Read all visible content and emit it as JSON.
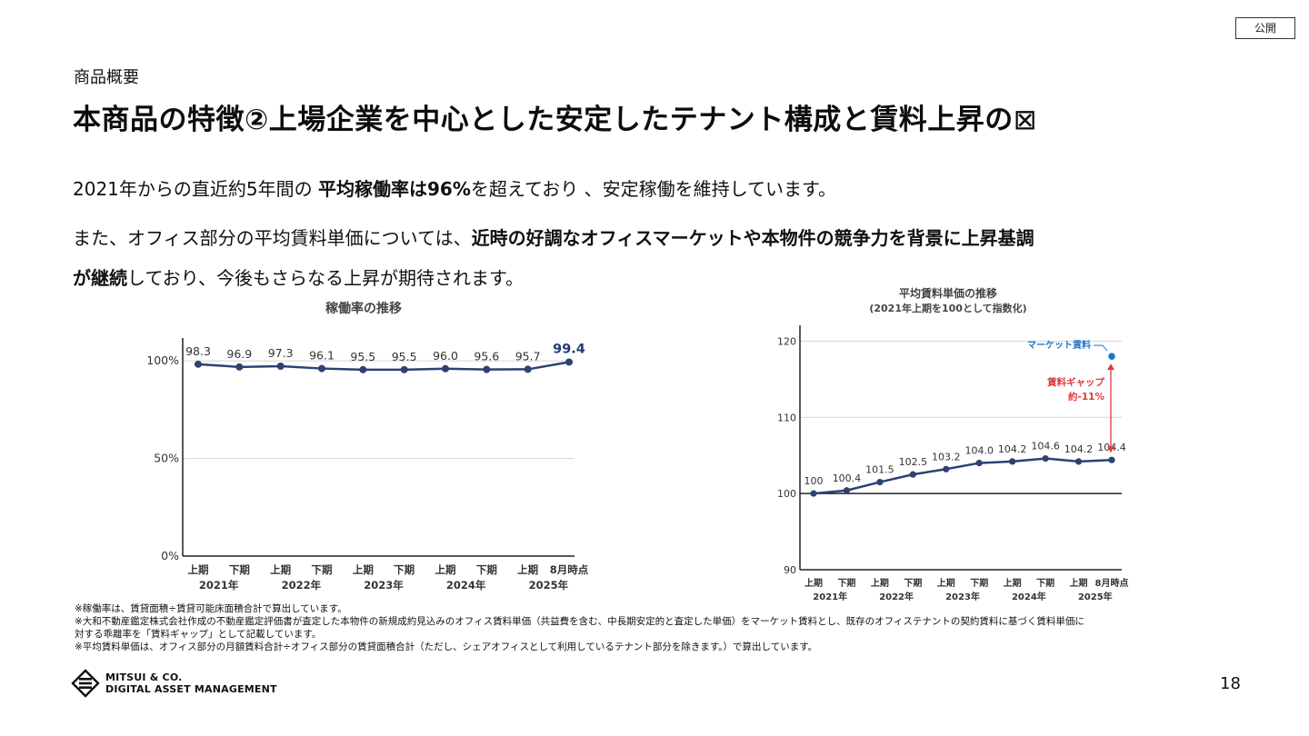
{
  "badge": "公開",
  "section_label": "商品概要",
  "title": "本商品の特徴②上場企業を中心とした安定したテナント構成と賃料上昇の",
  "title_glyph": "⊠",
  "paragraph1": {
    "part1": "2021年からの直近約5年間の ",
    "bold": "平均稼働率は96%",
    "part2": "を超えており 、安定稼働を維持しています。"
  },
  "paragraph2": {
    "part1": "また、オフィス部分の平均賃料単価については、",
    "bold1": "近時の好調なオフィスマーケットや本物件の競争力を背景に上昇基調",
    "bold2": "が継続",
    "part2": "しており、今後もさらなる上昇が期待されます。"
  },
  "chart_data": [
    {
      "type": "line",
      "title": "稼働率の推移",
      "categories": [
        "上期",
        "下期",
        "上期",
        "下期",
        "上期",
        "下期",
        "上期",
        "下期",
        "上期",
        "8月時点"
      ],
      "year_groups": [
        "2021年",
        "2022年",
        "2023年",
        "2024年",
        "2025年"
      ],
      "values": [
        98.3,
        96.9,
        97.3,
        96.1,
        95.5,
        95.5,
        96.0,
        95.6,
        95.7,
        99.4
      ],
      "value_labels": [
        "98.3",
        "96.9",
        "97.3",
        "96.1",
        "95.5",
        "95.5",
        "96.0",
        "95.6",
        "95.7",
        "99.4"
      ],
      "yticks": [
        "0%",
        "50%",
        "100%"
      ],
      "ytick_values": [
        0,
        50,
        100
      ],
      "ylim": [
        0,
        108
      ],
      "highlight_last": true,
      "colors": {
        "line": "#2e4173",
        "highlight": "#1f3a7a"
      }
    },
    {
      "type": "line",
      "title": "平均賃料単価の推移",
      "subtitle": "(2021年上期を100として指数化)",
      "categories": [
        "上期",
        "下期",
        "上期",
        "下期",
        "上期",
        "下期",
        "上期",
        "下期",
        "上期",
        "8月時点"
      ],
      "year_groups": [
        "2021年",
        "2022年",
        "2023年",
        "2024年",
        "2025年"
      ],
      "values": [
        100,
        100.4,
        101.5,
        102.5,
        103.2,
        104.0,
        104.2,
        104.6,
        104.2,
        104.4
      ],
      "value_labels": [
        "100",
        "100.4",
        "101.5",
        "102.5",
        "103.2",
        "104.0",
        "104.2",
        "104.6",
        "104.2",
        "104.4"
      ],
      "yticks": [
        "90",
        "100",
        "110",
        "120"
      ],
      "ytick_values": [
        90,
        100,
        110,
        120
      ],
      "ylim": [
        90,
        121
      ],
      "market_rent": {
        "label": "マーケット賃料",
        "value": 118
      },
      "gap": {
        "label1": "賃料ギャップ",
        "label2": "約-11%"
      },
      "colors": {
        "line": "#2e4173",
        "market": "#1f77c4",
        "gap": "#e23b3b"
      }
    }
  ],
  "notes": [
    "※稼働率は、賃貸面積÷賃貸可能床面積合計で算出しています。",
    "※大和不動産鑑定株式会社作成の不動産鑑定評価書が査定した本物件の新規成約見込みのオフィス賃料単価（共益費を含む、中長期安定的と査定した単価）をマーケット賃料とし、既存のオフィステナントの契約賃料に基づく賃料単価に",
    "対する乖離率を「賃料ギャップ」として記載しています。",
    "※平均賃料単価は、オフィス部分の月額賃料合計÷オフィス部分の賃貸面積合計（ただし、シェアオフィスとして利用しているテナント部分を除きます。）で算出しています。"
  ],
  "logo": {
    "line1": "MITSUI & CO.",
    "line2": "DIGITAL ASSET MANAGEMENT"
  },
  "page_number": "18"
}
